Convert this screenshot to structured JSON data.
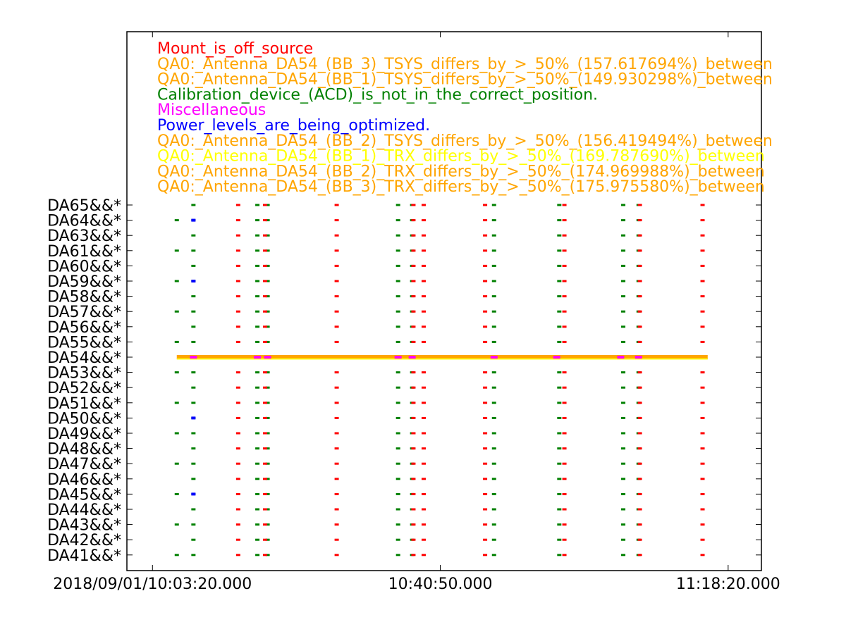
{
  "chart_data": {
    "type": "scatter",
    "title": "",
    "xlabel": "",
    "ylabel": "",
    "x_axis": {
      "type": "time",
      "start": "2018/09/01/10:03:20.000",
      "end": "2018/09/01/11:18:20.000",
      "ticks": [
        {
          "time": "10:03:20",
          "label": "2018/09/01/10:03:20.000"
        },
        {
          "time": "10:40:50",
          "label": "10:40:50.000"
        },
        {
          "time": "11:18:20",
          "label": "11:18:20.000"
        }
      ],
      "xlim": [
        "10:00:00",
        "11:22:40"
      ]
    },
    "y_axis": {
      "categories": [
        "DA41&&*",
        "DA42&&*",
        "DA43&&*",
        "DA44&&*",
        "DA45&&*",
        "DA46&&*",
        "DA47&&*",
        "DA48&&*",
        "DA49&&*",
        "DA50&&*",
        "DA51&&*",
        "DA52&&*",
        "DA53&&*",
        "DA54&&*",
        "DA55&&*",
        "DA56&&*",
        "DA57&&*",
        "DA58&&*",
        "DA59&&*",
        "DA60&&*",
        "DA61&&*",
        "DA63&&*",
        "DA64&&*",
        "DA65&&*"
      ]
    },
    "legend": {
      "placement": "top-left",
      "entries": [
        {
          "label": "Mount_is_off_source",
          "color": "#ff0000"
        },
        {
          "label": "QA0:_Antenna_DA54_(BB_3)_TSYS_differs_by_>_50%_(157.617694%)_between",
          "color": "#ffa500"
        },
        {
          "label": "QA0:_Antenna_DA54_(BB_1)_TSYS_differs_by_>_50%_(149.930298%)_between",
          "color": "#ffa500"
        },
        {
          "label": "Calibration_device_(ACD)_is_not_in_the_correct_position.",
          "color": "#008000"
        },
        {
          "label": "Miscellaneous",
          "color": "#ff00ff"
        },
        {
          "label": "Power_levels_are_being_optimized.",
          "color": "#0000ff"
        },
        {
          "label": "QA0:_Antenna_DA54_(BB_2)_TSYS_differs_by_>_50%_(156.419494%)_between",
          "color": "#ffa500"
        },
        {
          "label": "QA0:_Antenna_DA54_(BB_1)_TRX_differs_by_>_50%_(169.787690%)_between",
          "color": "#ffff00"
        },
        {
          "label": "QA0:_Antenna_DA54_(BB_2)_TRX_differs_by_>_50%_(174.969988%)_between",
          "color": "#ffa500"
        },
        {
          "label": "QA0:_Antenna_DA54_(BB_3)_TRX_differs_by_>_50%_(175.975580%)_between",
          "color": "#ffa500"
        }
      ]
    },
    "series": [
      {
        "name": "Calibration_device_(ACD)_is_not_in_the_correct_position.",
        "color": "#008000",
        "columns": [
          {
            "time": "10:06:30",
            "rows": "odd"
          },
          {
            "time": "10:08:40",
            "rows": "all"
          },
          {
            "time": "10:17:00",
            "rows": "all"
          },
          {
            "time": "10:18:20",
            "rows": "all"
          },
          {
            "time": "10:35:20",
            "rows": "all"
          },
          {
            "time": "10:37:10",
            "rows": "all"
          },
          {
            "time": "10:47:50",
            "rows": "all"
          },
          {
            "time": "10:56:20",
            "rows": "all"
          },
          {
            "time": "11:04:40",
            "rows": "all"
          },
          {
            "time": "11:06:40",
            "rows": "all"
          }
        ]
      },
      {
        "name": "Mount_is_off_source",
        "color": "#ff0000",
        "columns": [
          {
            "time": "10:14:30",
            "rows": "all"
          },
          {
            "time": "10:18:00",
            "rows": "all"
          },
          {
            "time": "10:27:20",
            "rows": "all"
          },
          {
            "time": "10:37:20",
            "rows": "all"
          },
          {
            "time": "10:38:40",
            "rows": "all"
          },
          {
            "time": "10:46:40",
            "rows": "all"
          },
          {
            "time": "10:57:00",
            "rows": "all"
          },
          {
            "time": "11:06:50",
            "rows": "all"
          },
          {
            "time": "11:15:00",
            "rows": "all"
          }
        ]
      },
      {
        "name": "Power_levels_are_being_optimized.",
        "color": "#0000ff",
        "points": [
          {
            "time": "10:08:40",
            "row": "DA64&&*"
          },
          {
            "time": "10:08:40",
            "row": "DA59&&*"
          },
          {
            "time": "10:08:40",
            "row": "DA50&&*"
          },
          {
            "time": "10:08:40",
            "row": "DA45&&*"
          }
        ]
      },
      {
        "name": "Miscellaneous",
        "color": "#ff00ff",
        "points": [
          {
            "time": "10:08:40",
            "row": "DA54&&*"
          },
          {
            "time": "10:17:00",
            "row": "DA54&&*"
          },
          {
            "time": "10:18:20",
            "row": "DA54&&*"
          },
          {
            "time": "10:35:20",
            "row": "DA54&&*"
          },
          {
            "time": "10:37:10",
            "row": "DA54&&*"
          },
          {
            "time": "10:47:50",
            "row": "DA54&&*"
          },
          {
            "time": "10:56:00",
            "row": "DA54&&*"
          },
          {
            "time": "11:04:20",
            "row": "DA54&&*"
          },
          {
            "time": "11:06:40",
            "row": "DA54&&*"
          }
        ]
      },
      {
        "name": "QA0:_Antenna_DA54_TSYS_TRX_differs_by_>_50%",
        "color": "#ffa500",
        "bar": {
          "row": "DA54&&*",
          "start": "10:06:30",
          "end": "11:15:40"
        }
      }
    ]
  }
}
